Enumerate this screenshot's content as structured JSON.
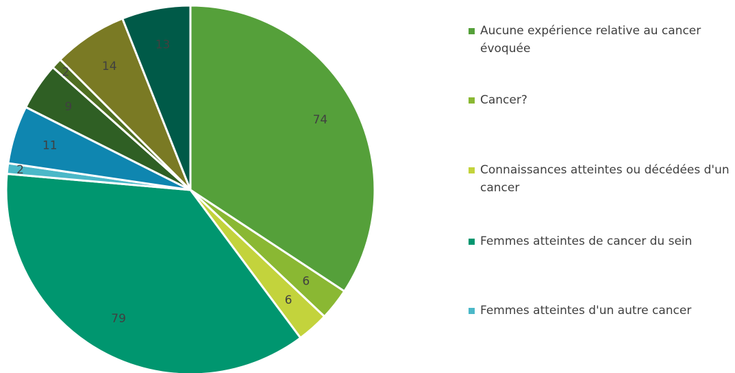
{
  "chart_data": {
    "type": "pie",
    "categories": [
      "Aucune expérience relative au cancer évoquée",
      "Cancer?",
      "Connaissances atteintes ou décédées d'un cancer",
      "Femmes atteintes de cancer du sein",
      "Femmes atteintes d'un autre cancer",
      null,
      null,
      null,
      null,
      null
    ],
    "values": [
      74,
      6,
      6,
      79,
      2,
      11,
      9,
      2,
      14,
      13
    ],
    "colors": [
      "#55a03a",
      "#8ab833",
      "#c3d33c",
      "#00966f",
      "#4bb8c8",
      "#0f86b0",
      "#2f5f24",
      "#4f6e22",
      "#7a7a24",
      "#005a48"
    ],
    "legend": "right"
  }
}
